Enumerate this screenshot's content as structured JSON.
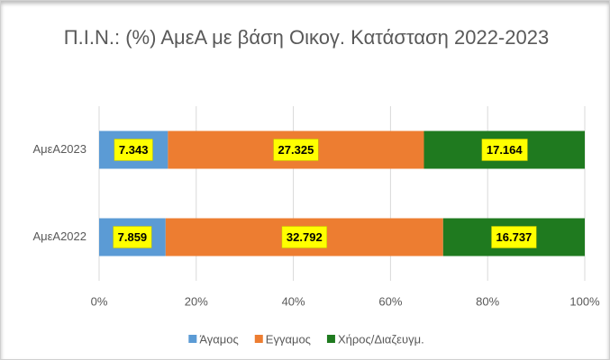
{
  "chart_data": {
    "type": "stacked_bar_horizontal_percent",
    "title": "Π.Ι.Ν.:  (%) ΑμεΑ με βάση Οικογ. Κατάσταση 2022-2023",
    "categories": [
      "ΑμεΑ2023",
      "ΑμεΑ2022"
    ],
    "series": [
      {
        "name": "Άγαμος",
        "color": "#5b9bd5",
        "values": [
          7.343,
          7.859
        ]
      },
      {
        "name": "Εγγαμος",
        "color": "#ed7d31",
        "values": [
          27.325,
          32.792
        ]
      },
      {
        "name": "Χήρος/Διαζευγμ.",
        "color": "#1f7a1f",
        "values": [
          17.164,
          16.737
        ]
      }
    ],
    "xlim": [
      0,
      100
    ],
    "xticks": [
      {
        "value": 0,
        "label": "0%"
      },
      {
        "value": 20,
        "label": "20%"
      },
      {
        "value": 40,
        "label": "40%"
      },
      {
        "value": 60,
        "label": "60%"
      },
      {
        "value": 80,
        "label": "80%"
      },
      {
        "value": 100,
        "label": "100%"
      }
    ],
    "grid": true,
    "legend": "bottom"
  }
}
